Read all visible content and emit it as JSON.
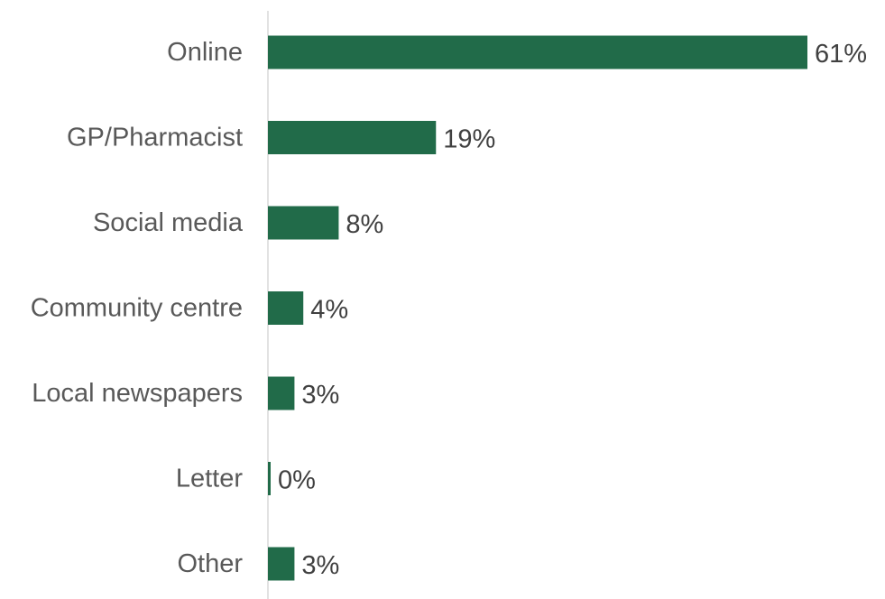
{
  "chart_data": {
    "type": "bar",
    "orientation": "horizontal",
    "categories": [
      "Online",
      "GP/Pharmacist",
      "Social media",
      "Community centre",
      "Local newspapers",
      "Letter",
      "Other"
    ],
    "values": [
      61,
      19,
      8,
      4,
      3,
      0,
      3
    ],
    "value_labels": [
      "61%",
      "19%",
      "8%",
      "4%",
      "3%",
      "0%",
      "3%"
    ],
    "unit": "%",
    "xlim": [
      0,
      61
    ],
    "grid": false,
    "legend": "none",
    "bar_color": "#216b49",
    "axis_color": "#d9d9d9"
  }
}
